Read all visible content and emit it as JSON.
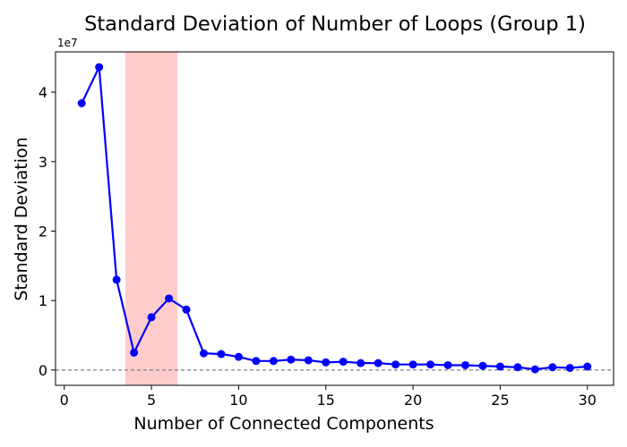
{
  "chart_data": {
    "type": "line",
    "title": "Standard Deviation of Number of Loops (Group 1)",
    "xlabel": "Number of Connected Components",
    "ylabel": "Standard Deviation",
    "y_offset_label": "1e7",
    "xlim": [
      -0.5,
      31.5
    ],
    "ylim": [
      -2200000,
      45800000
    ],
    "x_ticks": [
      0,
      5,
      10,
      15,
      20,
      25,
      30
    ],
    "y_ticks": [
      0,
      10000000,
      20000000,
      30000000,
      40000000
    ],
    "y_tick_labels": [
      "0",
      "1",
      "2",
      "3",
      "4"
    ],
    "highlight_span": {
      "x0": 3.5,
      "x1": 6.5,
      "color": "#ffcccc"
    },
    "reference_line": {
      "y": 0,
      "style": "dashed",
      "color": "#808080"
    },
    "grid": false,
    "series": [
      {
        "color": "#0000ff",
        "marker": "circle",
        "x": [
          1,
          2,
          3,
          4,
          5,
          6,
          7,
          8,
          9,
          10,
          11,
          12,
          13,
          14,
          15,
          16,
          17,
          18,
          19,
          20,
          21,
          22,
          23,
          24,
          25,
          26,
          27,
          28,
          29,
          30
        ],
        "values": [
          38400000,
          43600000,
          13000000,
          2500000,
          7600000,
          10300000,
          8700000,
          2400000,
          2300000,
          1900000,
          1300000,
          1300000,
          1500000,
          1400000,
          1100000,
          1200000,
          1000000,
          1000000,
          800000,
          800000,
          800000,
          700000,
          700000,
          600000,
          500000,
          400000,
          100000,
          400000,
          300000,
          500000
        ]
      }
    ]
  }
}
